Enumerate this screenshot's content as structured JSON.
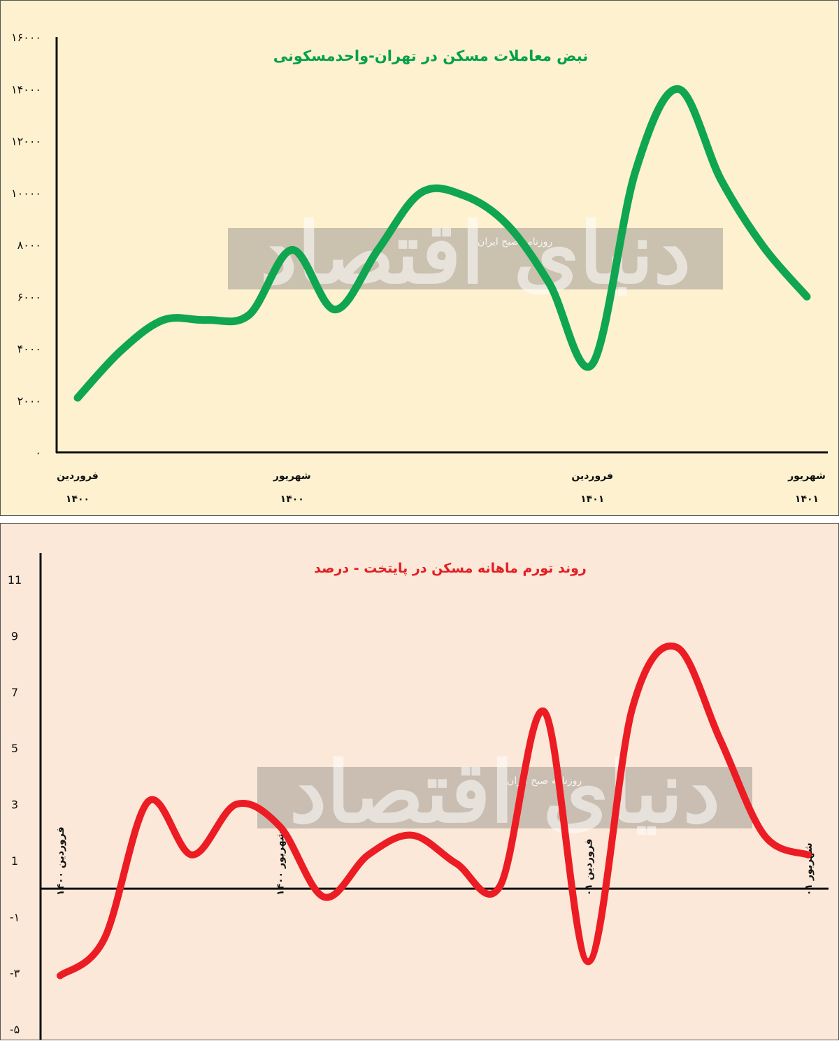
{
  "watermark": {
    "brand": "دنیای اقتصاد",
    "tagline": "روزنامه صبح ایران",
    "color": "#b8b0a4"
  },
  "chart_data": [
    {
      "type": "line",
      "title": "نبض معاملات مسکن در تهران-واحدمسکونی",
      "title_color": "#00a04a",
      "line_color": "#10a550",
      "ylim": [
        0,
        16000
      ],
      "yticks": [
        0,
        2000,
        4000,
        6000,
        8000,
        10000,
        12000,
        14000,
        16000
      ],
      "ytick_labels": [
        "۰",
        "۲۰۰۰",
        "۴۰۰۰",
        "۶۰۰۰",
        "۸۰۰۰",
        "۱۰۰۰۰",
        "۱۲۰۰۰",
        "۱۴۰۰۰",
        "۱۶۰۰۰"
      ],
      "xlim": [
        0,
        17
      ],
      "x_ticks": [
        {
          "x": 0,
          "month": "فروردین",
          "year": "۱۴۰۰"
        },
        {
          "x": 5,
          "month": "شهریور",
          "year": "۱۴۰۰"
        },
        {
          "x": 12,
          "month": "فروردین",
          "year": "۱۴۰۱"
        },
        {
          "x": 17,
          "month": "شهریور",
          "year": "۱۴۰۱"
        }
      ],
      "x": [
        0,
        1,
        2,
        3,
        4,
        5,
        6,
        7,
        8,
        9,
        10,
        11,
        12,
        13,
        14,
        15,
        16,
        17
      ],
      "values": [
        2100,
        3900,
        5100,
        5100,
        5300,
        7800,
        5500,
        7800,
        10000,
        9900,
        8800,
        6500,
        3400,
        10800,
        14000,
        10500,
        7900,
        6000
      ]
    },
    {
      "type": "line",
      "title": "روند تورم ماهانه مسکن در پایتخت - درصد",
      "title_color": "#e31e24",
      "line_color": "#ec1c24",
      "ylim": [
        -5,
        11
      ],
      "yticks": [
        -5,
        -3,
        -1,
        1,
        3,
        5,
        7,
        9,
        11
      ],
      "ytick_labels": [
        "-۵",
        "-۳",
        "-۱",
        "1",
        "3",
        "5",
        "7",
        "9",
        "11"
      ],
      "xlim": [
        0,
        17
      ],
      "x_ticks": [
        {
          "x": 0,
          "label": "فروردین ۱۴۰۰"
        },
        {
          "x": 5,
          "label": "شهریور ۱۴۰۰"
        },
        {
          "x": 12,
          "label": "فروردین ۰۱"
        },
        {
          "x": 17,
          "label": "شهریور ۰۱"
        }
      ],
      "x": [
        0,
        1,
        2,
        3,
        4,
        5,
        6,
        7,
        8,
        9,
        10,
        11,
        12,
        13,
        14,
        15,
        16,
        17
      ],
      "values": [
        -3.1,
        -1.8,
        3.1,
        1.2,
        3.0,
        2.2,
        -0.3,
        1.2,
        1.9,
        0.9,
        0.1,
        6.3,
        -2.6,
        6.4,
        8.6,
        5.3,
        1.9,
        1.2
      ]
    }
  ]
}
